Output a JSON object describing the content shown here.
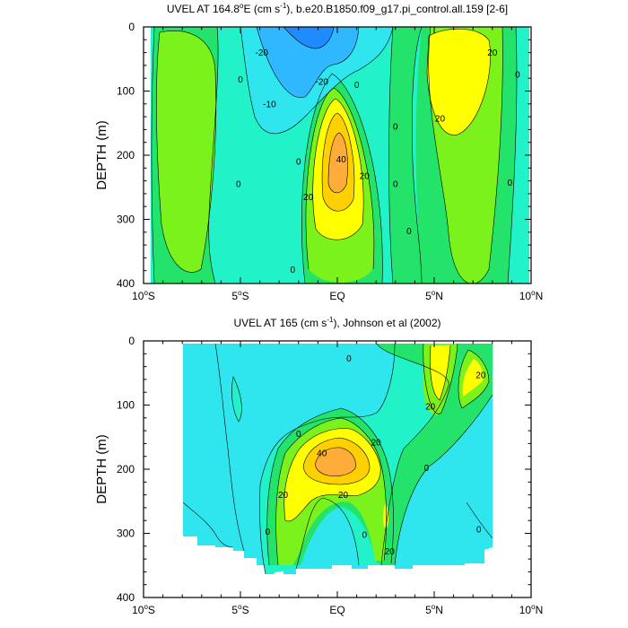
{
  "chart_data": [
    {
      "type": "heatmap",
      "title": "UVEL AT 164.8°E (cm s⁻¹), b.e20.B1850.f09_g17.pi_control.all.159 [2-6]",
      "title_parts": [
        "UVEL AT 164.8",
        "o",
        "E (cm s",
        "-1",
        "), b.e20.B1850.f09_g17.pi_control.all.159 [2-6]"
      ],
      "ylabel": "DEPTH (m)",
      "xlim": [
        -10,
        10
      ],
      "ylim": [
        400,
        0
      ],
      "x_ticks": [
        {
          "v": -10,
          "label": "10",
          "deg": "o",
          "dir": "S"
        },
        {
          "v": -5,
          "label": "5",
          "deg": "o",
          "dir": "S"
        },
        {
          "v": 0,
          "label": "EQ",
          "deg": "",
          "dir": ""
        },
        {
          "v": 5,
          "label": "5",
          "deg": "o",
          "dir": "N"
        },
        {
          "v": 10,
          "label": "10",
          "deg": "o",
          "dir": "N"
        }
      ],
      "y_ticks": [
        0,
        100,
        200,
        300,
        400
      ],
      "data_extent": {
        "x": [
          -9.6,
          9.6
        ],
        "y": [
          0,
          400
        ]
      },
      "levels": [
        -30,
        -20,
        -10,
        0,
        10,
        20,
        30,
        40
      ],
      "colors": [
        "#1e8cff",
        "#2fb8ff",
        "#2fe6ef",
        "#22f2c8",
        "#23e36a",
        "#7cf21c",
        "#ffff00",
        "#ffd000",
        "#ffac3a"
      ],
      "contour_labels": [
        {
          "x": -5.1,
          "y": 245,
          "text": "0"
        },
        {
          "x": -5.0,
          "y": 82,
          "text": "0"
        },
        {
          "x": -3.5,
          "y": 120,
          "text": "-10"
        },
        {
          "x": -2.0,
          "y": 210,
          "text": "0"
        },
        {
          "x": -2.3,
          "y": 378,
          "text": "0"
        },
        {
          "x": -3.9,
          "y": 40,
          "text": "-20"
        },
        {
          "x": -0.8,
          "y": 85,
          "text": "-20"
        },
        {
          "x": 1.0,
          "y": 90,
          "text": "0"
        },
        {
          "x": -1.5,
          "y": 265,
          "text": "20"
        },
        {
          "x": 1.4,
          "y": 232,
          "text": "20"
        },
        {
          "x": 0.2,
          "y": 206,
          "text": "40"
        },
        {
          "x": 3.0,
          "y": 155,
          "text": "0"
        },
        {
          "x": 3.0,
          "y": 245,
          "text": "0"
        },
        {
          "x": 3.7,
          "y": 318,
          "text": "0"
        },
        {
          "x": 5.3,
          "y": 143,
          "text": "20"
        },
        {
          "x": 8.0,
          "y": 40,
          "text": "20"
        },
        {
          "x": 9.3,
          "y": 74,
          "text": "0"
        },
        {
          "x": 8.9,
          "y": 243,
          "text": "0"
        }
      ]
    },
    {
      "type": "heatmap",
      "title": "UVEL AT 165 (cm s⁻¹), Johnson et al (2002)",
      "title_parts": [
        "UVEL AT 165 (cm s",
        "-1",
        "), Johnson et al (2002)"
      ],
      "ylabel": "DEPTH (m)",
      "xlim": [
        -10,
        10
      ],
      "ylim": [
        400,
        0
      ],
      "x_ticks": [
        {
          "v": -10,
          "label": "10",
          "deg": "o",
          "dir": "S"
        },
        {
          "v": -5,
          "label": "5",
          "deg": "o",
          "dir": "S"
        },
        {
          "v": 0,
          "label": "EQ",
          "deg": "",
          "dir": ""
        },
        {
          "v": 5,
          "label": "5",
          "deg": "o",
          "dir": "N"
        },
        {
          "v": 10,
          "label": "10",
          "deg": "o",
          "dir": "N"
        }
      ],
      "y_ticks": [
        0,
        100,
        200,
        300,
        400
      ],
      "data_extent": {
        "x": [
          -8,
          8
        ],
        "y": [
          5,
          345
        ]
      },
      "levels": [
        -30,
        -20,
        -10,
        0,
        10,
        20,
        30,
        40
      ],
      "colors": [
        "#1e8cff",
        "#2fb8ff",
        "#2fe6ef",
        "#22f2c8",
        "#23e36a",
        "#7cf21c",
        "#ffff00",
        "#ffd000",
        "#ffac3a"
      ],
      "contour_labels": [
        {
          "x": 0.6,
          "y": 27,
          "text": "0"
        },
        {
          "x": 7.4,
          "y": 53,
          "text": "20"
        },
        {
          "x": 4.8,
          "y": 102,
          "text": "20"
        },
        {
          "x": -2.0,
          "y": 145,
          "text": "0"
        },
        {
          "x": -0.8,
          "y": 175,
          "text": "40"
        },
        {
          "x": 2.0,
          "y": 158,
          "text": "20"
        },
        {
          "x": -2.8,
          "y": 240,
          "text": "20"
        },
        {
          "x": 0.3,
          "y": 240,
          "text": "20"
        },
        {
          "x": 4.6,
          "y": 198,
          "text": "0"
        },
        {
          "x": -3.6,
          "y": 297,
          "text": "0"
        },
        {
          "x": 1.4,
          "y": 302,
          "text": "0"
        },
        {
          "x": 2.7,
          "y": 328,
          "text": "20"
        },
        {
          "x": 7.3,
          "y": 294,
          "text": "0"
        }
      ]
    }
  ]
}
